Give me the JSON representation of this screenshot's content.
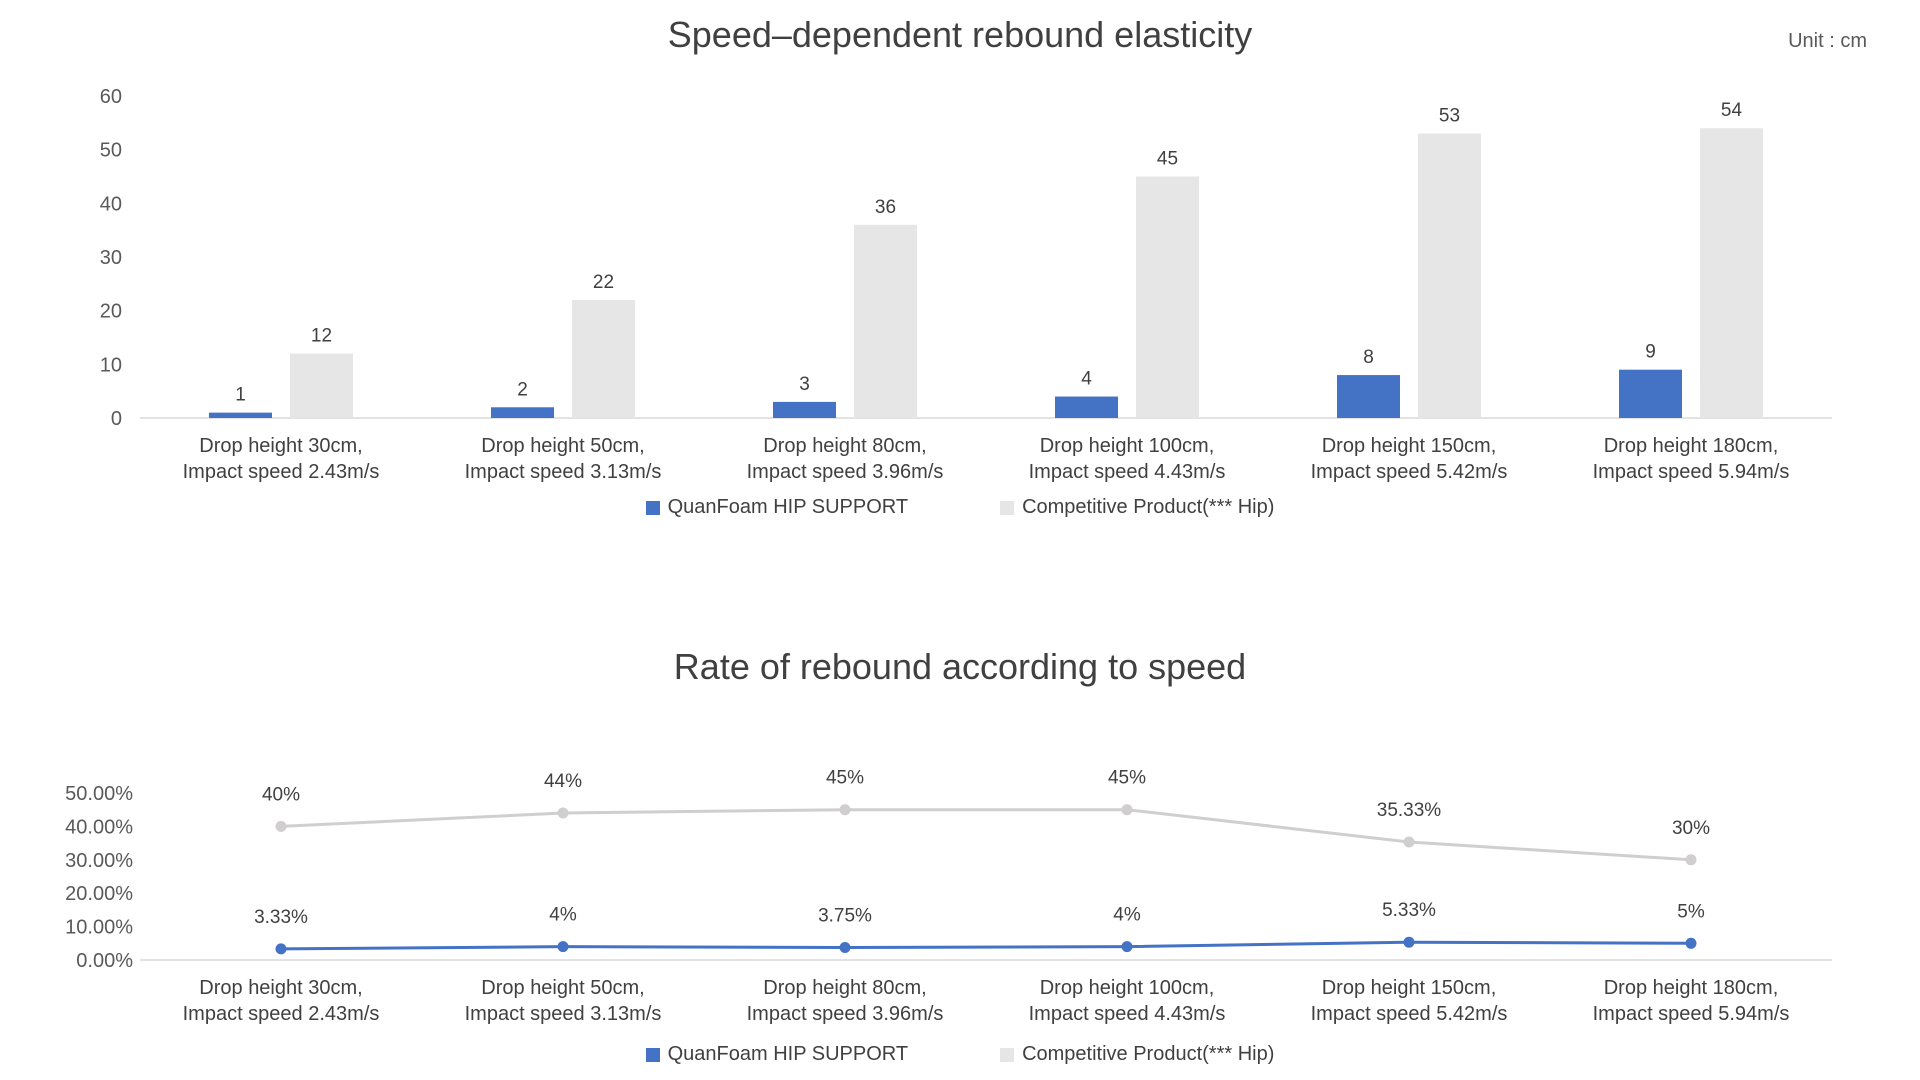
{
  "chart_data": [
    {
      "type": "bar",
      "title": "Speed–dependent rebound elasticity",
      "unit_note": "Unit : cm",
      "categories": [
        [
          "Drop height 30cm,",
          "Impact speed 2.43m/s"
        ],
        [
          "Drop height 50cm,",
          "Impact speed 3.13m/s"
        ],
        [
          "Drop height 80cm,",
          "Impact speed 3.96m/s"
        ],
        [
          "Drop height 100cm,",
          "Impact speed 4.43m/s"
        ],
        [
          "Drop height 150cm,",
          "Impact speed 5.42m/s"
        ],
        [
          "Drop height 180cm,",
          "Impact speed 5.94m/s"
        ]
      ],
      "ylim": [
        0,
        60
      ],
      "yticks": [
        0,
        10,
        20,
        30,
        40,
        50,
        60
      ],
      "ytick_labels": [
        "0",
        "10",
        "20",
        "30",
        "40",
        "50",
        "60"
      ],
      "grid": false,
      "legend_position": "bottom",
      "series": [
        {
          "name": "QuanFoam HIP SUPPORT",
          "color": "#4472C4",
          "values": [
            1,
            2,
            3,
            4,
            8,
            9
          ],
          "labels": [
            "1",
            "2",
            "3",
            "4",
            "8",
            "9"
          ]
        },
        {
          "name": "Competitive Product(*** Hip)",
          "color": "#E7E6E6",
          "values": [
            12,
            22,
            36,
            45,
            53,
            54
          ],
          "labels": [
            "12",
            "22",
            "36",
            "45",
            "53",
            "54"
          ]
        }
      ]
    },
    {
      "type": "line",
      "title": "Rate of rebound according to speed",
      "categories": [
        [
          "Drop height 30cm,",
          "Impact speed 2.43m/s"
        ],
        [
          "Drop height 50cm,",
          "Impact speed 3.13m/s"
        ],
        [
          "Drop height 80cm,",
          "Impact speed 3.96m/s"
        ],
        [
          "Drop height 100cm,",
          "Impact speed 4.43m/s"
        ],
        [
          "Drop height 150cm,",
          "Impact speed 5.42m/s"
        ],
        [
          "Drop height 180cm,",
          "Impact speed 5.94m/s"
        ]
      ],
      "ylim": [
        0,
        50
      ],
      "yticks": [
        0,
        10,
        20,
        30,
        40,
        50
      ],
      "ytick_labels": [
        "0.00%",
        "10.00%",
        "20.00%",
        "30.00%",
        "40.00%",
        "50.00%"
      ],
      "grid": false,
      "legend_position": "bottom",
      "series": [
        {
          "name": "QuanFoam HIP SUPPORT",
          "color": "#4472C4",
          "values": [
            3.33,
            4,
            3.75,
            4,
            5.33,
            5
          ],
          "labels": [
            "3.33%",
            "4%",
            "3.75%",
            "4%",
            "5.33%",
            "5%"
          ]
        },
        {
          "name": "Competitive Product(*** Hip)",
          "color": "#D0CECE",
          "values": [
            40,
            44,
            45,
            45,
            35.33,
            30
          ],
          "labels": [
            "40%",
            "44%",
            "45%",
            "45%",
            "35.33%",
            "30%"
          ]
        }
      ]
    }
  ]
}
